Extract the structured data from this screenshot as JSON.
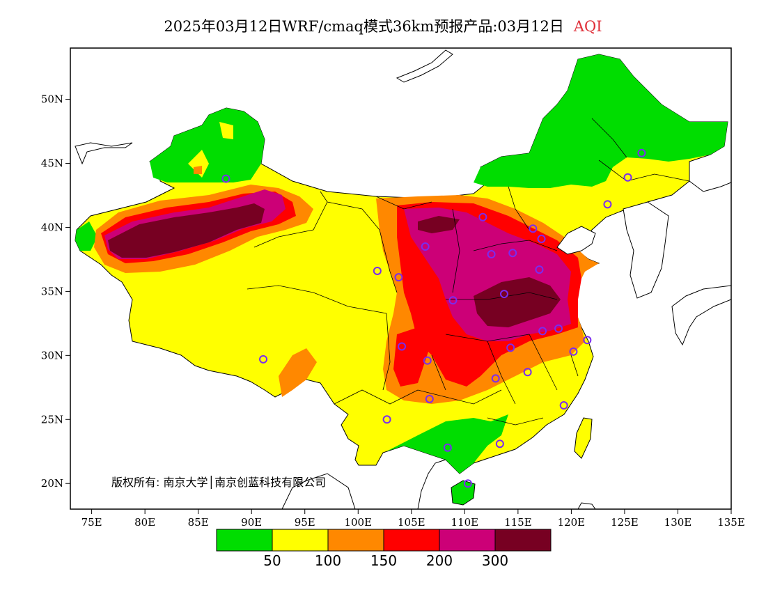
{
  "title": {
    "text": "2025年03月12日WRF/cmaq模式36km预报产品:03月12日",
    "variable": "AQI"
  },
  "map": {
    "lon_range": [
      73,
      135
    ],
    "lat_range": [
      18,
      54
    ],
    "lon_ticks": [
      {
        "value": 75,
        "label": "75E"
      },
      {
        "value": 80,
        "label": "80E"
      },
      {
        "value": 85,
        "label": "85E"
      },
      {
        "value": 90,
        "label": "90E"
      },
      {
        "value": 95,
        "label": "95E"
      },
      {
        "value": 100,
        "label": "100E"
      },
      {
        "value": 105,
        "label": "105E"
      },
      {
        "value": 110,
        "label": "110E"
      },
      {
        "value": 115,
        "label": "115E"
      },
      {
        "value": 120,
        "label": "120E"
      },
      {
        "value": 125,
        "label": "125E"
      },
      {
        "value": 130,
        "label": "130E"
      },
      {
        "value": 135,
        "label": "135E"
      }
    ],
    "lat_ticks": [
      {
        "value": 20,
        "label": "20N"
      },
      {
        "value": 25,
        "label": "25N"
      },
      {
        "value": 30,
        "label": "30N"
      },
      {
        "value": 35,
        "label": "35N"
      },
      {
        "value": 40,
        "label": "40N"
      },
      {
        "value": 45,
        "label": "45N"
      },
      {
        "value": 50,
        "label": "50N"
      }
    ],
    "copyright": "版权所有: 南京大学│南京创蓝科技有限公司",
    "colors": {
      "good": "#00dd00",
      "moderate": "#ffff00",
      "sensitive": "#ff8800",
      "unhealthy": "#ff0000",
      "very_unhealthy": "#cc0077",
      "hazardous": "#770022",
      "city_marker": "#7a2cf0"
    },
    "cities": [
      {
        "lon": 87.6,
        "lat": 43.8
      },
      {
        "lon": 91.1,
        "lat": 29.7
      },
      {
        "lon": 101.8,
        "lat": 36.6
      },
      {
        "lon": 103.8,
        "lat": 36.1
      },
      {
        "lon": 106.3,
        "lat": 38.5
      },
      {
        "lon": 111.7,
        "lat": 40.8
      },
      {
        "lon": 116.4,
        "lat": 39.9
      },
      {
        "lon": 117.2,
        "lat": 39.1
      },
      {
        "lon": 114.5,
        "lat": 38.0
      },
      {
        "lon": 112.5,
        "lat": 37.9
      },
      {
        "lon": 117.0,
        "lat": 36.7
      },
      {
        "lon": 113.7,
        "lat": 34.8
      },
      {
        "lon": 108.9,
        "lat": 34.3
      },
      {
        "lon": 117.3,
        "lat": 31.9
      },
      {
        "lon": 118.8,
        "lat": 32.1
      },
      {
        "lon": 121.5,
        "lat": 31.2
      },
      {
        "lon": 120.2,
        "lat": 30.3
      },
      {
        "lon": 114.3,
        "lat": 30.6
      },
      {
        "lon": 112.9,
        "lat": 28.2
      },
      {
        "lon": 115.9,
        "lat": 28.7
      },
      {
        "lon": 119.3,
        "lat": 26.1
      },
      {
        "lon": 113.3,
        "lat": 23.1
      },
      {
        "lon": 108.4,
        "lat": 22.8
      },
      {
        "lon": 110.3,
        "lat": 20.0
      },
      {
        "lon": 102.7,
        "lat": 25.0
      },
      {
        "lon": 106.7,
        "lat": 26.6
      },
      {
        "lon": 106.5,
        "lat": 29.6
      },
      {
        "lon": 104.1,
        "lat": 30.7
      },
      {
        "lon": 123.4,
        "lat": 41.8
      },
      {
        "lon": 125.3,
        "lat": 43.9
      },
      {
        "lon": 126.6,
        "lat": 45.8
      }
    ]
  },
  "legend": {
    "colors": [
      "#00dd00",
      "#ffff00",
      "#ff8800",
      "#ff0000",
      "#cc0077",
      "#770022"
    ],
    "labels": [
      "50",
      "100",
      "150",
      "200",
      "300"
    ]
  }
}
